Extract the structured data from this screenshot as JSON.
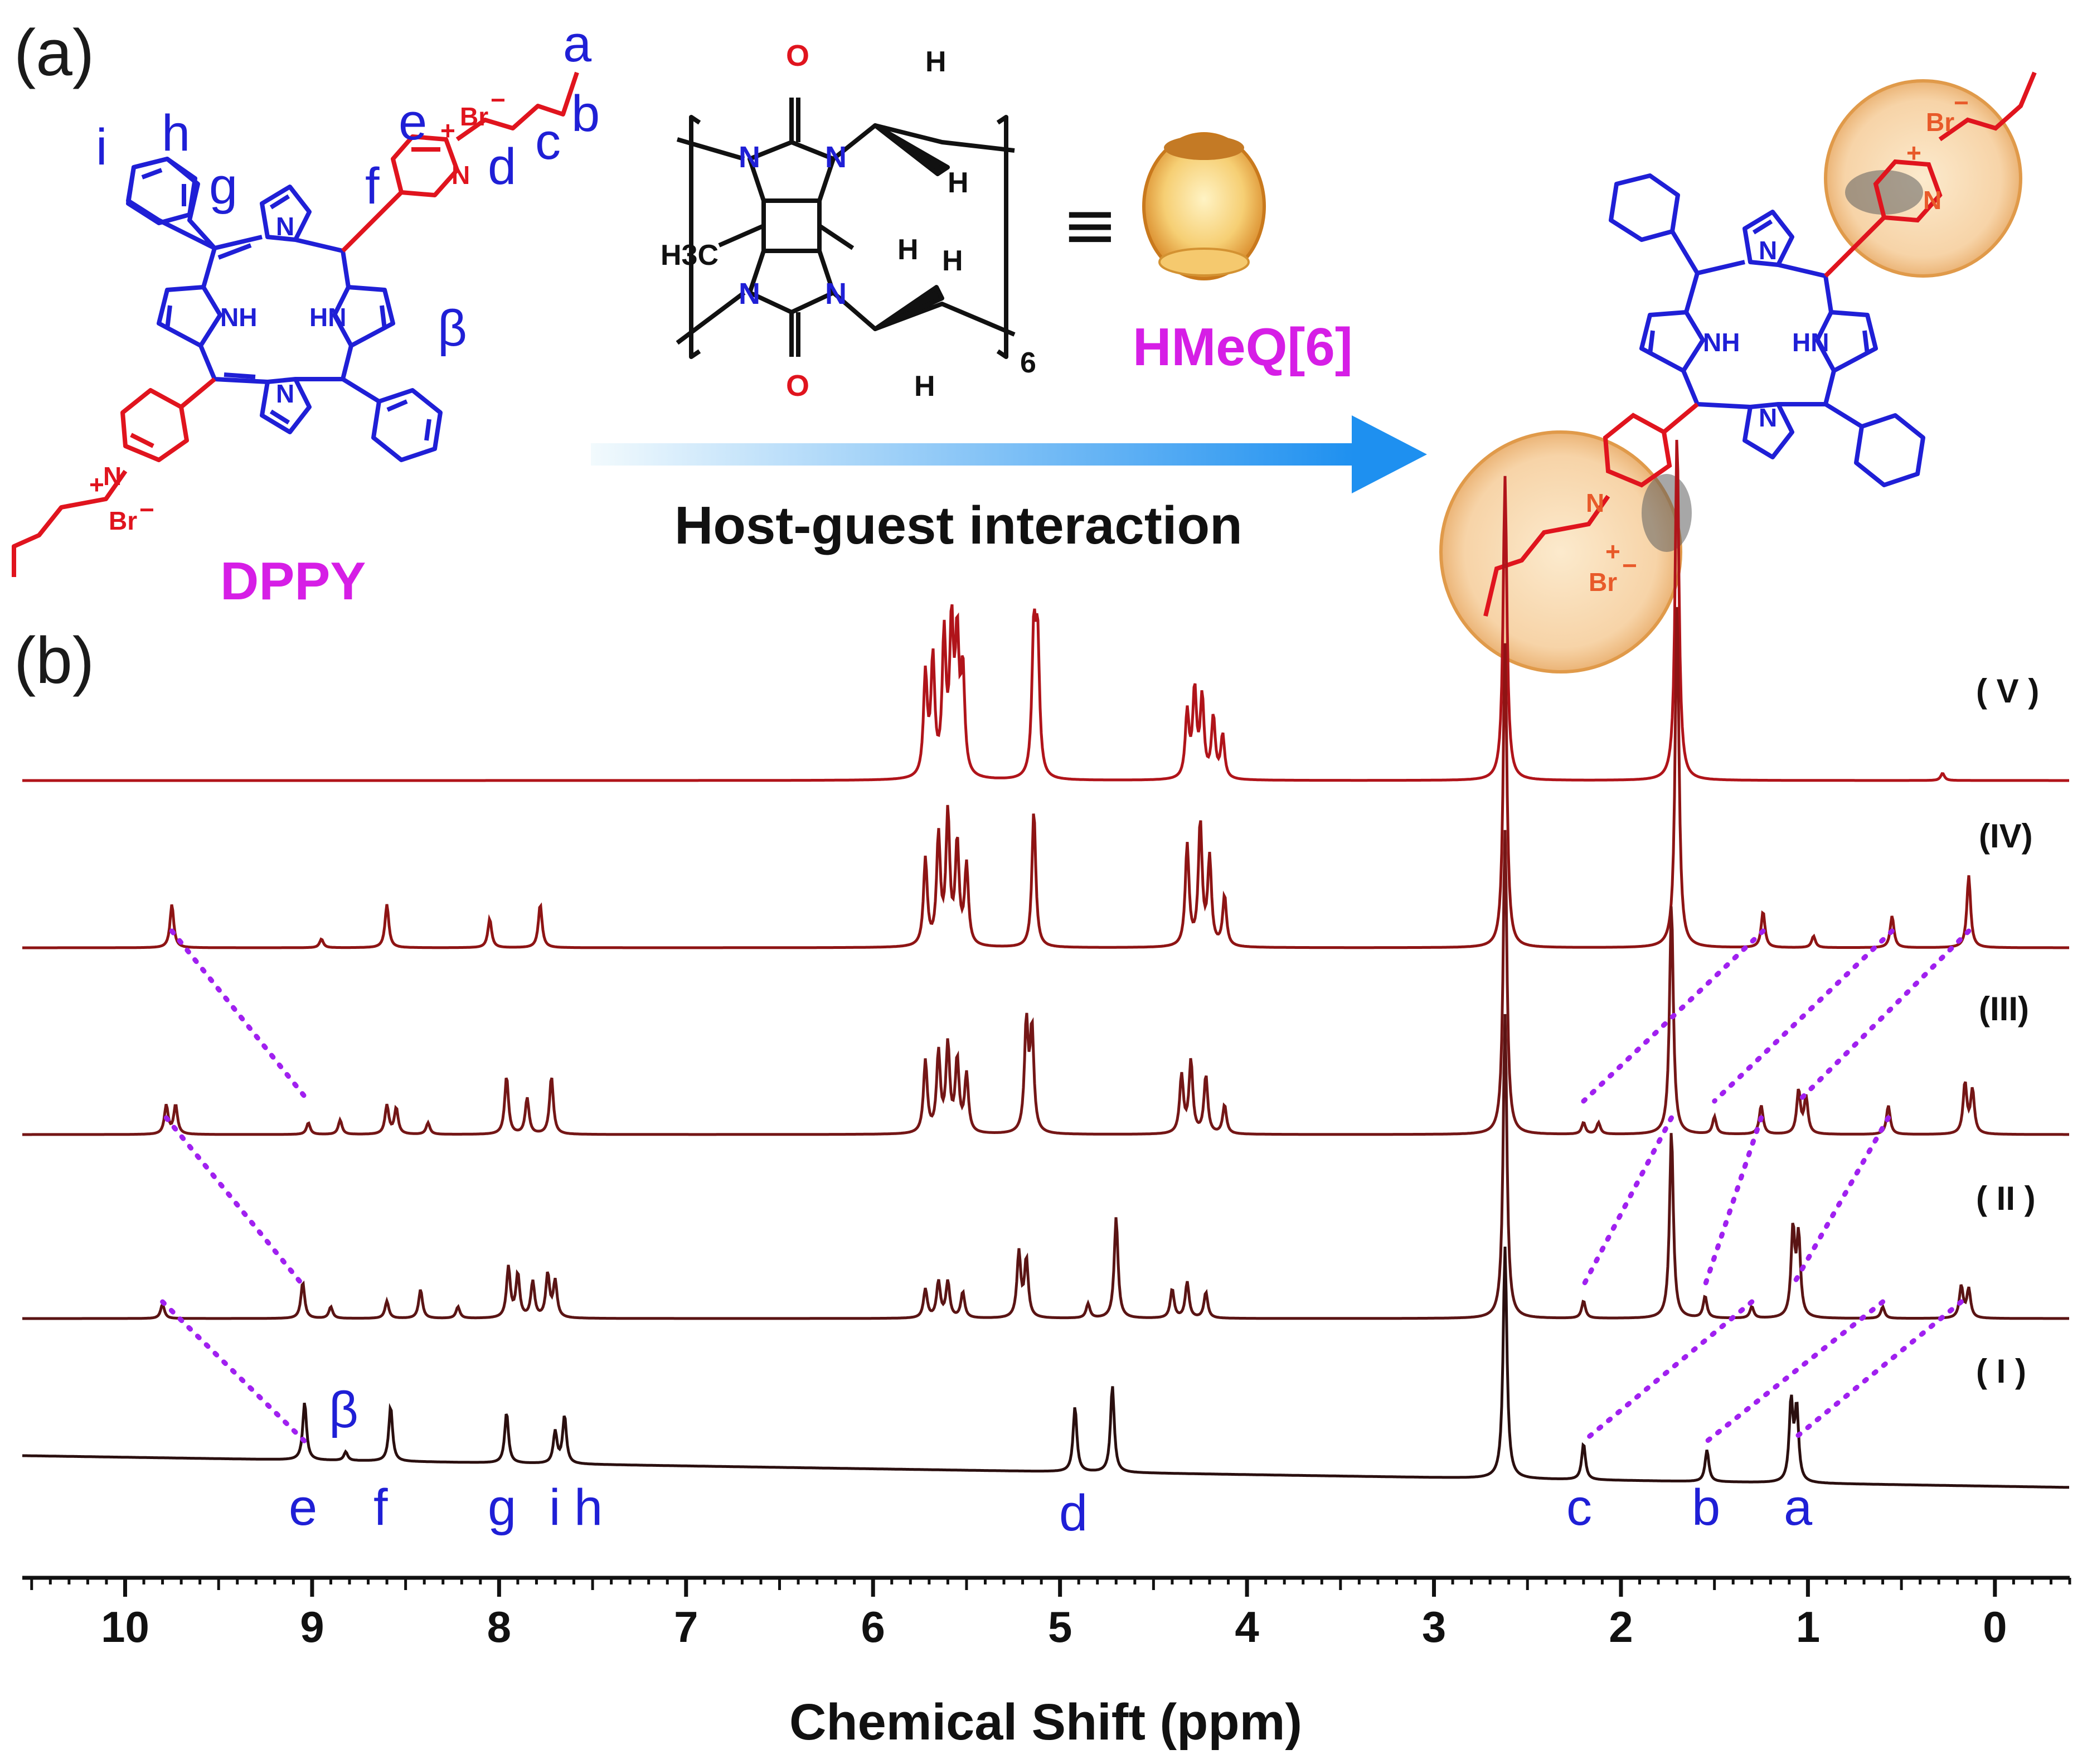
{
  "panel_labels": {
    "a": "(a)",
    "b": "(b)"
  },
  "scheme": {
    "guest_name": "DPPY",
    "host_name": "HMeQ[6]",
    "arrow_label": "Host-guest interaction",
    "subscript_6": "6",
    "equiv_symbol": "≡",
    "atoms": {
      "N": "N",
      "NH": "NH",
      "HN": "HN",
      "Nplus": "N",
      "plus": "+",
      "Br": "Br",
      "minus": "−",
      "O": "O",
      "H": "H",
      "H3C": "H3C"
    },
    "guest_proton_labels": [
      "a",
      "b",
      "c",
      "d",
      "e",
      "f",
      "g",
      "h",
      "i",
      "β"
    ]
  },
  "colors": {
    "blue": "#1f1fd6",
    "red": "#e0141e",
    "magenta": "#d61ee6",
    "dotted": "#a020f0",
    "trace_V": "#b0141a",
    "trace_IV": "#8e1414",
    "trace_III": "#741616",
    "trace_II": "#5a1414",
    "trace_I": "#2a0f0f",
    "arrow_start": "#eaf6fb",
    "arrow_end": "#2196f3",
    "cavity": "#f7c77a"
  },
  "chart_data": {
    "type": "line",
    "title": "",
    "xlabel": "Chemical Shift (ppm)",
    "ylabel": "",
    "xlim": [
      10.55,
      -0.4
    ],
    "x_inverted": true,
    "x_ticks": [
      10,
      9,
      8,
      7,
      6,
      5,
      4,
      3,
      2,
      1,
      0
    ],
    "grid": false,
    "series": [
      {
        "name": "(V)",
        "peaks": [
          [
            5.72,
            0.7
          ],
          [
            5.68,
            0.8
          ],
          [
            5.62,
            0.95
          ],
          [
            5.58,
            1.0
          ],
          [
            5.55,
            0.9
          ],
          [
            5.52,
            0.7
          ],
          [
            5.14,
            0.95
          ],
          [
            5.12,
            0.9
          ],
          [
            4.32,
            0.45
          ],
          [
            4.28,
            0.6
          ],
          [
            4.24,
            0.55
          ],
          [
            4.18,
            0.42
          ],
          [
            4.13,
            0.3
          ],
          [
            2.62,
            2.1
          ],
          [
            1.7,
            2.4
          ],
          [
            0.28,
            0.05
          ]
        ]
      },
      {
        "name": "(IV)",
        "peaks": [
          [
            9.75,
            0.3
          ],
          [
            8.95,
            0.06
          ],
          [
            8.6,
            0.3
          ],
          [
            8.05,
            0.2
          ],
          [
            7.78,
            0.3
          ],
          [
            5.72,
            0.6
          ],
          [
            5.65,
            0.75
          ],
          [
            5.6,
            0.9
          ],
          [
            5.55,
            0.7
          ],
          [
            5.5,
            0.55
          ],
          [
            5.14,
            0.95
          ],
          [
            4.32,
            0.7
          ],
          [
            4.25,
            0.85
          ],
          [
            4.2,
            0.6
          ],
          [
            4.12,
            0.35
          ],
          [
            2.62,
            2.1
          ],
          [
            1.7,
            2.4
          ],
          [
            1.24,
            0.25
          ],
          [
            0.97,
            0.08
          ],
          [
            0.55,
            0.22
          ],
          [
            0.14,
            0.5
          ]
        ]
      },
      {
        "name": "(III)",
        "peaks": [
          [
            9.78,
            0.2
          ],
          [
            9.73,
            0.2
          ],
          [
            9.02,
            0.08
          ],
          [
            8.85,
            0.1
          ],
          [
            8.6,
            0.2
          ],
          [
            8.55,
            0.18
          ],
          [
            8.38,
            0.08
          ],
          [
            7.96,
            0.4
          ],
          [
            7.85,
            0.25
          ],
          [
            7.72,
            0.4
          ],
          [
            5.72,
            0.5
          ],
          [
            5.65,
            0.55
          ],
          [
            5.6,
            0.6
          ],
          [
            5.55,
            0.5
          ],
          [
            5.5,
            0.4
          ],
          [
            5.18,
            0.75
          ],
          [
            5.15,
            0.7
          ],
          [
            4.35,
            0.4
          ],
          [
            4.3,
            0.5
          ],
          [
            4.22,
            0.4
          ],
          [
            4.12,
            0.2
          ],
          [
            2.62,
            2.1
          ],
          [
            2.2,
            0.08
          ],
          [
            2.12,
            0.08
          ],
          [
            1.73,
            1.6
          ],
          [
            1.5,
            0.12
          ],
          [
            1.25,
            0.2
          ],
          [
            1.05,
            0.3
          ],
          [
            1.01,
            0.25
          ],
          [
            0.57,
            0.2
          ],
          [
            0.16,
            0.35
          ],
          [
            0.12,
            0.3
          ]
        ]
      },
      {
        "name": "(II)",
        "peaks": [
          [
            9.8,
            0.1
          ],
          [
            9.05,
            0.25
          ],
          [
            8.9,
            0.08
          ],
          [
            8.6,
            0.12
          ],
          [
            8.42,
            0.2
          ],
          [
            8.22,
            0.08
          ],
          [
            7.95,
            0.35
          ],
          [
            7.9,
            0.3
          ],
          [
            7.82,
            0.25
          ],
          [
            7.74,
            0.3
          ],
          [
            7.7,
            0.25
          ],
          [
            5.72,
            0.2
          ],
          [
            5.65,
            0.25
          ],
          [
            5.6,
            0.25
          ],
          [
            5.52,
            0.18
          ],
          [
            5.22,
            0.45
          ],
          [
            5.18,
            0.4
          ],
          [
            4.85,
            0.1
          ],
          [
            4.4,
            0.2
          ],
          [
            4.32,
            0.25
          ],
          [
            4.22,
            0.18
          ],
          [
            4.7,
            0.7
          ],
          [
            2.62,
            2.1
          ],
          [
            2.2,
            0.12
          ],
          [
            1.73,
            1.3
          ],
          [
            1.55,
            0.15
          ],
          [
            1.3,
            0.08
          ],
          [
            1.08,
            0.6
          ],
          [
            1.05,
            0.55
          ],
          [
            0.6,
            0.08
          ],
          [
            0.18,
            0.22
          ],
          [
            0.14,
            0.2
          ]
        ]
      },
      {
        "name": "(I)",
        "peaks": [
          [
            9.04,
            0.4
          ],
          [
            8.82,
            0.06
          ],
          [
            8.58,
            0.38
          ],
          [
            7.96,
            0.35
          ],
          [
            7.7,
            0.22
          ],
          [
            7.65,
            0.33
          ],
          [
            4.92,
            0.45
          ],
          [
            4.72,
            0.6
          ],
          [
            2.62,
            1.6
          ],
          [
            2.2,
            0.25
          ],
          [
            1.54,
            0.22
          ],
          [
            1.09,
            0.55
          ],
          [
            1.06,
            0.5
          ]
        ]
      }
    ],
    "annotations": [
      "e",
      "β",
      "f",
      "g",
      "i",
      "h",
      "d",
      "c",
      "b",
      "a"
    ]
  },
  "peak_labels": {
    "e": "e",
    "beta": "β",
    "f": "f",
    "g": "g",
    "i": "i",
    "h": "h",
    "d": "d",
    "c": "c",
    "b": "b",
    "a": "a"
  },
  "trace_labels": {
    "V": "( V )",
    "IV": "(IV)",
    "III": "(III)",
    "II": "( II )",
    "I": "( I )"
  }
}
